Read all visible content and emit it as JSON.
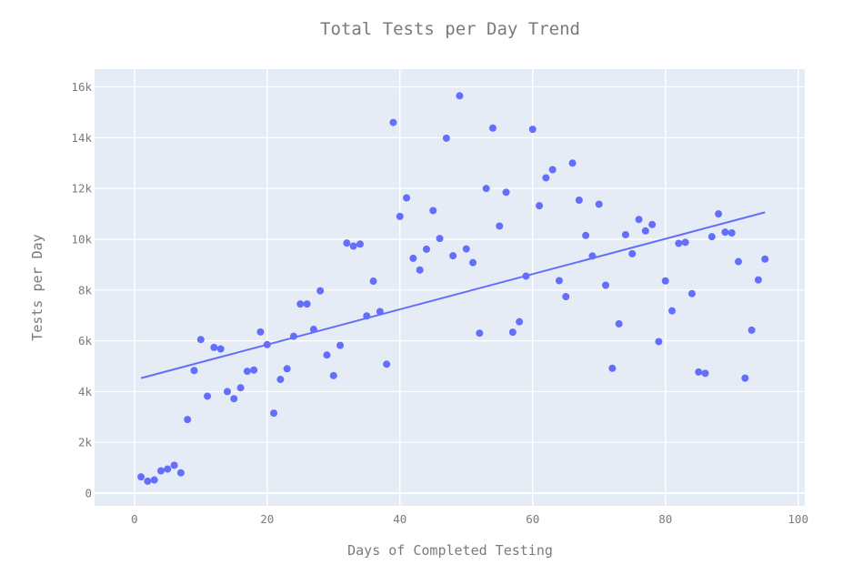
{
  "chart_data": {
    "type": "scatter",
    "title": "Total Tests per Day Trend",
    "xlabel": "Days of Completed Testing",
    "ylabel": "Tests per Day",
    "xlim": [
      -6,
      101
    ],
    "ylim": [
      -500,
      16700
    ],
    "xticks": [
      0,
      20,
      40,
      60,
      80,
      100
    ],
    "xtick_labels": [
      "0",
      "20",
      "40",
      "60",
      "80",
      "100"
    ],
    "yticks": [
      0,
      2000,
      4000,
      6000,
      8000,
      10000,
      12000,
      14000,
      16000
    ],
    "ytick_labels": [
      "0",
      "2k",
      "4k",
      "6k",
      "8k",
      "10k",
      "12k",
      "14k",
      "16k"
    ],
    "grid": true,
    "colors": {
      "plot_background": "#e5ecf6",
      "grid": "#ffffff",
      "marker": "#636efa",
      "trend_line": "#636efa",
      "text": "#7a7a7a"
    },
    "series": [
      {
        "type": "scatter",
        "x": [
          1,
          2,
          3,
          4,
          5,
          6,
          7,
          8,
          9,
          10,
          11,
          12,
          13,
          14,
          15,
          16,
          17,
          18,
          19,
          20,
          21,
          22,
          23,
          24,
          25,
          26,
          27,
          28,
          29,
          30,
          31,
          32,
          33,
          34,
          35,
          36,
          37,
          38,
          39,
          40,
          41,
          42,
          43,
          44,
          45,
          46,
          47,
          48,
          49,
          50,
          51,
          52,
          53,
          54,
          55,
          56,
          57,
          58,
          59,
          60,
          61,
          62,
          63,
          64,
          65,
          66,
          67,
          68,
          69,
          70,
          71,
          72,
          73,
          74,
          75,
          76,
          77,
          78,
          79,
          80,
          81,
          82,
          83,
          84,
          85,
          86,
          87,
          88,
          89,
          90,
          91,
          92,
          93,
          94,
          95
        ],
        "y": [
          640,
          470,
          520,
          880,
          950,
          1100,
          800,
          2900,
          4830,
          6050,
          3820,
          5740,
          5680,
          4000,
          3720,
          4150,
          4800,
          4850,
          6350,
          5850,
          3150,
          4480,
          4900,
          6180,
          7450,
          7450,
          6450,
          7970,
          5440,
          4630,
          5820,
          9850,
          9730,
          9810,
          6980,
          8350,
          7150,
          5080,
          14600,
          10900,
          11630,
          9250,
          8790,
          9610,
          11130,
          10030,
          13980,
          9350,
          15650,
          9620,
          9080,
          6300,
          12000,
          14380,
          10520,
          11850,
          6340,
          6750,
          8550,
          14330,
          11320,
          12420,
          12740,
          8370,
          7740,
          13000,
          11540,
          10150,
          9340,
          11380,
          8190,
          4920,
          6670,
          10180,
          9430,
          10780,
          10330,
          10580,
          5970,
          8360,
          7180,
          9840,
          9880,
          7860,
          4770,
          4720,
          10100,
          11000,
          10280,
          10250,
          9120,
          4530,
          6420,
          8400,
          9220
        ]
      },
      {
        "type": "line",
        "x": [
          1,
          95
        ],
        "y": [
          4530,
          11060
        ]
      }
    ]
  }
}
